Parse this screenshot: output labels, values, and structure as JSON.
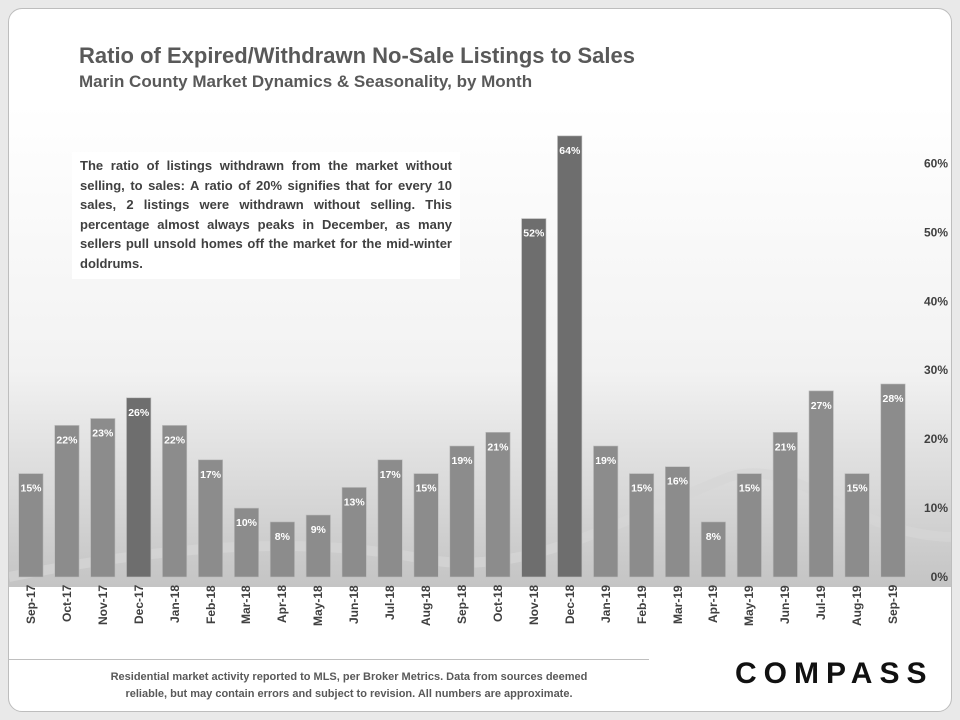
{
  "header": {
    "title": "Ratio of Expired/Withdrawn No-Sale Listings to Sales",
    "subtitle": "Marin County Market Dynamics & Seasonality, by Month"
  },
  "annotation": {
    "text": "The ratio of listings withdrawn from the market without selling, to sales: A ratio of 20% signifies that for every 10 sales, 2 listings were withdrawn without selling. This percentage almost always peaks in December, as many sellers pull unsold homes off the market for the mid-winter doldrums."
  },
  "footer": {
    "line1": "Residential market activity reported to MLS, per Broker Metrics. Data from sources deemed",
    "line2": "reliable, but may contain errors and subject to revision. All numbers are approximate."
  },
  "brand": {
    "name": "COMPASS"
  },
  "colors": {
    "bar": "#8c8c8c",
    "bar_highlight": "#6e6e6e",
    "label": "#ffffff",
    "axis_text": "#404040"
  },
  "chart_data": {
    "type": "bar",
    "title": "Ratio of Expired/Withdrawn No-Sale Listings to Sales",
    "xlabel": "",
    "ylabel": "",
    "y_axis_position": "right",
    "ylim": [
      0,
      0.65
    ],
    "yticks": [
      0,
      0.1,
      0.2,
      0.3,
      0.4,
      0.5,
      0.6
    ],
    "ytick_labels": [
      "0%",
      "10%",
      "20%",
      "30%",
      "40%",
      "50%",
      "60%"
    ],
    "categories": [
      "Sep-17",
      "Oct-17",
      "Nov-17",
      "Dec-17",
      "Jan-18",
      "Feb-18",
      "Mar-18",
      "Apr-18",
      "May-18",
      "Jun-18",
      "Jul-18",
      "Aug-18",
      "Sep-18",
      "Oct-18",
      "Nov-18",
      "Dec-18",
      "Jan-19",
      "Feb-19",
      "Mar-19",
      "Apr-19",
      "May-19",
      "Jun-19",
      "Jul-19",
      "Aug-19",
      "Sep-19"
    ],
    "values": [
      0.15,
      0.22,
      0.23,
      0.26,
      0.22,
      0.17,
      0.1,
      0.08,
      0.09,
      0.13,
      0.17,
      0.15,
      0.19,
      0.21,
      0.52,
      0.64,
      0.19,
      0.15,
      0.16,
      0.08,
      0.15,
      0.21,
      0.27,
      0.15,
      0.28
    ],
    "labels": [
      "15%",
      "22%",
      "23%",
      "26%",
      "22%",
      "17%",
      "10%",
      "8%",
      "9%",
      "13%",
      "17%",
      "15%",
      "19%",
      "21%",
      "52%",
      "64%",
      "19%",
      "15%",
      "16%",
      "8%",
      "15%",
      "21%",
      "27%",
      "15%",
      "28%"
    ],
    "highlight": [
      "Dec-17",
      "Nov-18",
      "Dec-18"
    ],
    "grid": false
  }
}
